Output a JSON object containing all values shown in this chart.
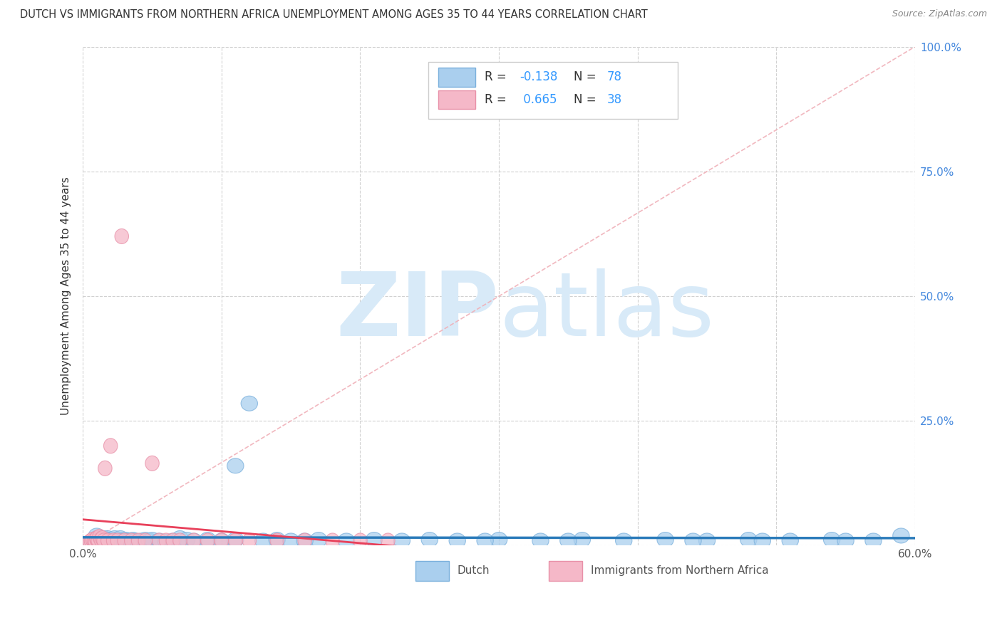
{
  "title": "DUTCH VS IMMIGRANTS FROM NORTHERN AFRICA UNEMPLOYMENT AMONG AGES 35 TO 44 YEARS CORRELATION CHART",
  "source": "Source: ZipAtlas.com",
  "ylabel": "Unemployment Among Ages 35 to 44 years",
  "xlim": [
    0,
    0.6
  ],
  "ylim": [
    0,
    1.0
  ],
  "ytick_right_labels": [
    "",
    "25.0%",
    "50.0%",
    "75.0%",
    "100.0%"
  ],
  "ytick_right_values": [
    0.0,
    0.25,
    0.5,
    0.75,
    1.0
  ],
  "xtick_labels": [
    "0.0%",
    "",
    "",
    "",
    "",
    "",
    "60.0%"
  ],
  "xtick_values": [
    0.0,
    0.1,
    0.2,
    0.3,
    0.4,
    0.5,
    0.6
  ],
  "dutch_color": "#aacfee",
  "dutch_edge_color": "#7ab0dc",
  "immigrant_color": "#f5b8c8",
  "immigrant_edge_color": "#e890a8",
  "line_dutch_color": "#2b7bba",
  "line_immigrant_color": "#e8405a",
  "diag_color": "#f0b0b8",
  "watermark_color": "#d8eaf8",
  "dutch_x": [
    0.005,
    0.007,
    0.008,
    0.009,
    0.01,
    0.01,
    0.01,
    0.011,
    0.012,
    0.012,
    0.013,
    0.014,
    0.015,
    0.015,
    0.016,
    0.017,
    0.018,
    0.018,
    0.019,
    0.02,
    0.02,
    0.021,
    0.022,
    0.023,
    0.024,
    0.025,
    0.026,
    0.027,
    0.028,
    0.03,
    0.031,
    0.032,
    0.033,
    0.035,
    0.036,
    0.038,
    0.04,
    0.042,
    0.045,
    0.048,
    0.05,
    0.055,
    0.06,
    0.065,
    0.07,
    0.075,
    0.08,
    0.09,
    0.1,
    0.11,
    0.12,
    0.13,
    0.14,
    0.15,
    0.17,
    0.19,
    0.21,
    0.23,
    0.25,
    0.27,
    0.3,
    0.33,
    0.36,
    0.39,
    0.42,
    0.45,
    0.48,
    0.51,
    0.54,
    0.57,
    0.11,
    0.16,
    0.29,
    0.35,
    0.44,
    0.49,
    0.55,
    0.59
  ],
  "dutch_y": [
    0.005,
    0.008,
    0.006,
    0.009,
    0.012,
    0.015,
    0.02,
    0.01,
    0.008,
    0.014,
    0.01,
    0.012,
    0.015,
    0.008,
    0.01,
    0.012,
    0.015,
    0.008,
    0.01,
    0.012,
    0.008,
    0.01,
    0.012,
    0.015,
    0.008,
    0.01,
    0.012,
    0.015,
    0.01,
    0.01,
    0.012,
    0.008,
    0.01,
    0.008,
    0.012,
    0.01,
    0.008,
    0.01,
    0.012,
    0.01,
    0.012,
    0.01,
    0.008,
    0.01,
    0.015,
    0.012,
    0.01,
    0.012,
    0.01,
    0.012,
    0.285,
    0.01,
    0.012,
    0.01,
    0.012,
    0.01,
    0.012,
    0.01,
    0.012,
    0.01,
    0.012,
    0.01,
    0.012,
    0.01,
    0.012,
    0.01,
    0.012,
    0.01,
    0.012,
    0.01,
    0.16,
    0.01,
    0.01,
    0.01,
    0.01,
    0.01,
    0.01,
    0.02
  ],
  "immigrant_x": [
    0.004,
    0.005,
    0.006,
    0.007,
    0.008,
    0.009,
    0.01,
    0.01,
    0.011,
    0.012,
    0.013,
    0.014,
    0.015,
    0.016,
    0.018,
    0.02,
    0.022,
    0.025,
    0.028,
    0.03,
    0.035,
    0.04,
    0.045,
    0.05,
    0.055,
    0.06,
    0.065,
    0.07,
    0.08,
    0.09,
    0.1,
    0.11,
    0.12,
    0.14,
    0.16,
    0.18,
    0.2,
    0.22
  ],
  "immigrant_y": [
    0.005,
    0.008,
    0.01,
    0.012,
    0.01,
    0.008,
    0.012,
    0.015,
    0.01,
    0.018,
    0.012,
    0.015,
    0.01,
    0.155,
    0.01,
    0.2,
    0.01,
    0.01,
    0.62,
    0.01,
    0.01,
    0.01,
    0.01,
    0.165,
    0.01,
    0.01,
    0.01,
    0.01,
    0.01,
    0.01,
    0.01,
    0.01,
    0.01,
    0.01,
    0.01,
    0.01,
    0.01,
    0.01
  ],
  "legend_text1": "R = -0.138   N = 78",
  "legend_text2": "R =  0.665   N = 38"
}
